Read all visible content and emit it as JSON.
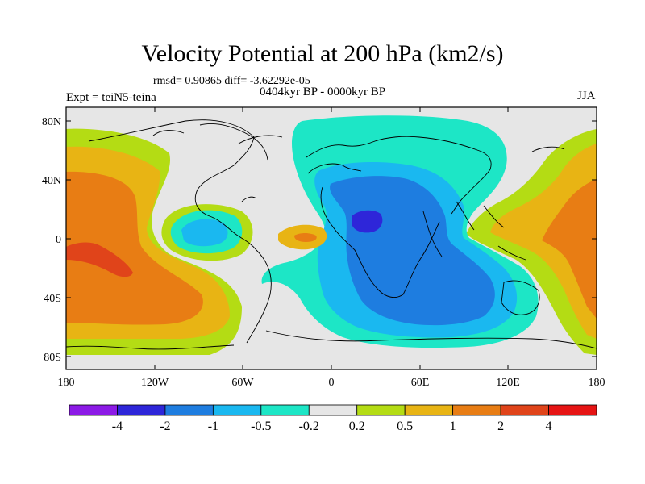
{
  "title": "Velocity Potential at 200 hPa (km2/s)",
  "stats": "rmsd= 0.90865 diff= -3.62292e-05",
  "period": "0404kyr BP - 0000kyr BP",
  "experiment": "Expt = teiN5-teina",
  "season": "JJA",
  "map": {
    "lon_labels": [
      "180",
      "120W",
      "60W",
      "0",
      "60E",
      "120E",
      "180"
    ],
    "lat_labels": [
      "80N",
      "40N",
      "0",
      "40S",
      "80S"
    ],
    "background_color": "#e6e6e6"
  },
  "colorbar": {
    "levels": [
      "-4",
      "-2",
      "-1",
      "-0.5",
      "-0.2",
      "0.2",
      "0.5",
      "1",
      "2",
      "4"
    ],
    "colors": [
      "#8c1ae6",
      "#2e26d9",
      "#1e7de0",
      "#1ab8f0",
      "#1de6c6",
      "#e6e6e6",
      "#b4dc14",
      "#e8b414",
      "#e87d14",
      "#e0441a",
      "#e61414"
    ]
  },
  "regions": {
    "pacific_positive_max": "2",
    "africa_negative_min": "-4",
    "atlantic_positive": "1"
  }
}
